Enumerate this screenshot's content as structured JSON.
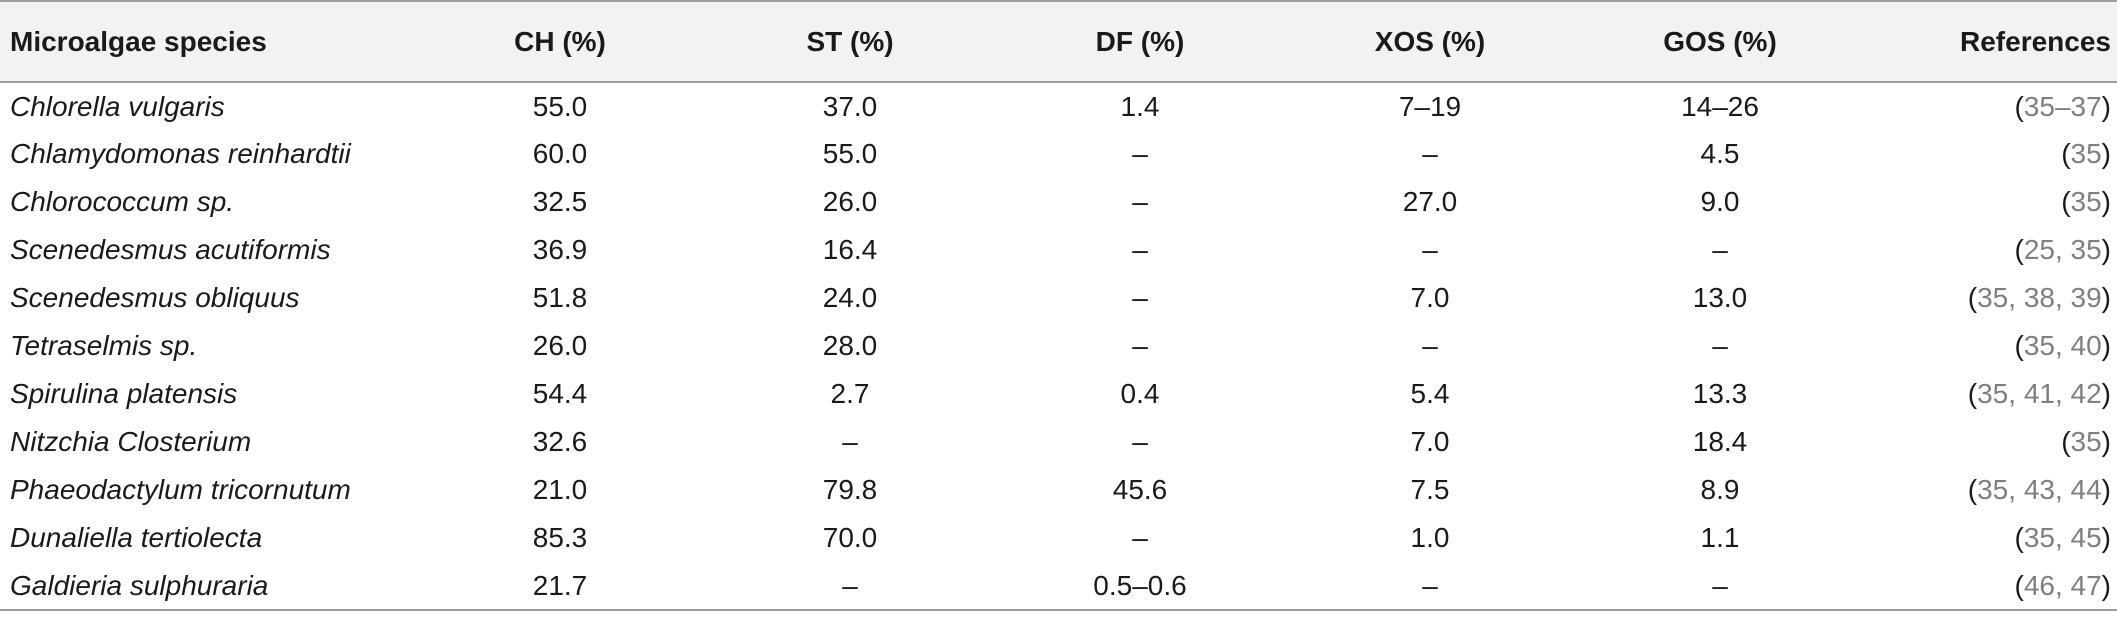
{
  "headers": {
    "species": "Microalgae species",
    "ch": "CH (%)",
    "st": "ST (%)",
    "df": "DF (%)",
    "xos": "XOS (%)",
    "gos": "GOS (%)",
    "references": "References"
  },
  "rows": [
    {
      "species": "Chlorella vulgaris",
      "ch": "55.0",
      "st": "37.0",
      "df": "1.4",
      "xos": "7–19",
      "gos": "14–26",
      "ref_open": "(",
      "ref": "35–37",
      "ref_close": ")"
    },
    {
      "species": "Chlamydomonas reinhardtii",
      "ch": "60.0",
      "st": "55.0",
      "df": "–",
      "xos": "–",
      "gos": "4.5",
      "ref_open": "(",
      "ref": "35",
      "ref_close": ")"
    },
    {
      "species": "Chlorococcum sp.",
      "ch": "32.5",
      "st": "26.0",
      "df": "–",
      "xos": "27.0",
      "gos": "9.0",
      "ref_open": "(",
      "ref": "35",
      "ref_close": ")"
    },
    {
      "species": "Scenedesmus acutiformis",
      "ch": "36.9",
      "st": "16.4",
      "df": "–",
      "xos": "–",
      "gos": "–",
      "ref_open": "(",
      "ref": "25, 35",
      "ref_close": ")"
    },
    {
      "species": "Scenedesmus obliquus",
      "ch": "51.8",
      "st": "24.0",
      "df": "–",
      "xos": "7.0",
      "gos": "13.0",
      "ref_open": "(",
      "ref": "35, 38, 39",
      "ref_close": ")"
    },
    {
      "species": "Tetraselmis sp.",
      "ch": "26.0",
      "st": "28.0",
      "df": "–",
      "xos": "–",
      "gos": "–",
      "ref_open": "(",
      "ref": "35, 40",
      "ref_close": ")"
    },
    {
      "species": "Spirulina platensis",
      "ch": "54.4",
      "st": "2.7",
      "df": "0.4",
      "xos": "5.4",
      "gos": "13.3",
      "ref_open": "(",
      "ref": "35, 41, 42",
      "ref_close": ")"
    },
    {
      "species": "Nitzchia Closterium",
      "ch": "32.6",
      "st": "–",
      "df": "–",
      "xos": "7.0",
      "gos": "18.4",
      "ref_open": "(",
      "ref": "35",
      "ref_close": ")"
    },
    {
      "species": "Phaeodactylum tricornutum",
      "ch": "21.0",
      "st": "79.8",
      "df": "45.6",
      "xos": "7.5",
      "gos": "8.9",
      "ref_open": "(",
      "ref": "35, 43, 44",
      "ref_close": ")"
    },
    {
      "species": "Dunaliella tertiolecta",
      "ch": "85.3",
      "st": "70.0",
      "df": "–",
      "xos": "1.0",
      "gos": "1.1",
      "ref_open": "(",
      "ref": "35, 45",
      "ref_close": ")"
    },
    {
      "species": "Galdieria sulphuraria",
      "ch": "21.7",
      "st": "–",
      "df": "0.5–0.6",
      "xos": "–",
      "gos": "–",
      "ref_open": "(",
      "ref": "46, 47",
      "ref_close": ")"
    }
  ],
  "colors": {
    "header_bg": "#f2f2f2",
    "rule": "#9c9c9c",
    "ref_link": "#7f7f7f",
    "text": "#1a1a1a"
  }
}
